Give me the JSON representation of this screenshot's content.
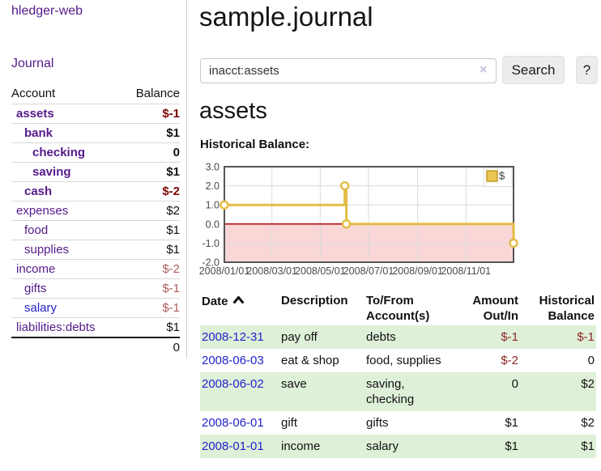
{
  "app": {
    "brand": "hledger-web",
    "nav": {
      "journal": "Journal"
    }
  },
  "sidebar": {
    "headers": {
      "account": "Account",
      "balance": "Balance"
    },
    "accounts": [
      {
        "name": "assets",
        "balance": "$-1",
        "depth": 1,
        "bold": true,
        "neg": true
      },
      {
        "name": "bank",
        "balance": "$1",
        "depth": 2,
        "bold": true,
        "neg": false
      },
      {
        "name": "checking",
        "balance": "0",
        "depth": 3,
        "bold": true,
        "neg": false
      },
      {
        "name": "saving",
        "balance": "$1",
        "depth": 3,
        "bold": true,
        "neg": false
      },
      {
        "name": "cash",
        "balance": "$-2",
        "depth": 2,
        "bold": true,
        "neg": true
      },
      {
        "name": "expenses",
        "balance": "$2",
        "depth": 1,
        "bold": false,
        "neg": false
      },
      {
        "name": "food",
        "balance": "$1",
        "depth": 2,
        "bold": false,
        "neg": false
      },
      {
        "name": "supplies",
        "balance": "$1",
        "depth": 2,
        "bold": false,
        "neg": false
      },
      {
        "name": "income",
        "balance": "$-2",
        "depth": 1,
        "bold": false,
        "neg": true
      },
      {
        "name": "gifts",
        "balance": "$-1",
        "depth": 2,
        "bold": false,
        "neg": true
      },
      {
        "name": "salary",
        "balance": "$-1",
        "depth": 2,
        "bold": false,
        "neg": true,
        "blue": true
      },
      {
        "name": "liabilities:debts",
        "balance": "$1",
        "depth": 1,
        "bold": false,
        "neg": false
      }
    ],
    "total": "0"
  },
  "header": {
    "title": "sample.journal"
  },
  "search": {
    "value": "inacct:assets",
    "clear": "×",
    "button_label": "Search",
    "help_label": "?"
  },
  "account_page": {
    "title": "assets",
    "chart_label": "Historical Balance:"
  },
  "chart_data": {
    "type": "line",
    "step": true,
    "title": "Historical Balance",
    "series": [
      {
        "name": "$",
        "color": "#e3bd45",
        "points": [
          [
            "2008-01-01",
            1
          ],
          [
            "2008-06-01",
            2
          ],
          [
            "2008-06-03",
            0
          ],
          [
            "2008-12-31",
            -1
          ]
        ]
      }
    ],
    "xlim": [
      "2008-01-01",
      "2008-12-31"
    ],
    "ylim": [
      -2,
      3
    ],
    "yticks": [
      3.0,
      2.0,
      1.0,
      0.0,
      -1.0,
      -2.0
    ],
    "xticks": [
      [
        "2008-01-01",
        "2008/01/01"
      ],
      [
        "2008-03-01",
        "2008/03/01"
      ],
      [
        "2008-05-01",
        "2008/05/01"
      ],
      [
        "2008-07-01",
        "2008/07/01"
      ],
      [
        "2008-09-01",
        "2008/09/01"
      ],
      [
        "2008-11-01",
        "2008/11/01"
      ]
    ],
    "legend": {
      "label": "$",
      "position": "top-right"
    },
    "grid": true,
    "negative_fill": "#f9d7d7",
    "zero_line_color": "#b30000",
    "grid_color": "#dadada",
    "border_color": "#555555"
  },
  "register": {
    "headers": [
      "Date",
      "Description",
      "To/From Account(s)",
      "Amount Out/In",
      "Historical Balance"
    ],
    "sort_icon": "chevron-up-icon",
    "rows": [
      {
        "date": "2008-12-31",
        "description": "pay off",
        "accounts": "debts",
        "amount": "$-1",
        "amount_neg": true,
        "balance": "$-1",
        "balance_neg": true
      },
      {
        "date": "2008-06-03",
        "description": "eat & shop",
        "accounts": "food, supplies",
        "amount": "$-2",
        "amount_neg": true,
        "balance": "0",
        "balance_neg": false
      },
      {
        "date": "2008-06-02",
        "description": "save",
        "accounts": "saving, checking",
        "amount": "0",
        "amount_neg": false,
        "balance": "$2",
        "balance_neg": false
      },
      {
        "date": "2008-06-01",
        "description": "gift",
        "accounts": "gifts",
        "amount": "$1",
        "amount_neg": false,
        "balance": "$2",
        "balance_neg": false
      },
      {
        "date": "2008-01-01",
        "description": "income",
        "accounts": "salary",
        "amount": "$1",
        "amount_neg": false,
        "balance": "$1",
        "balance_neg": false
      }
    ]
  }
}
